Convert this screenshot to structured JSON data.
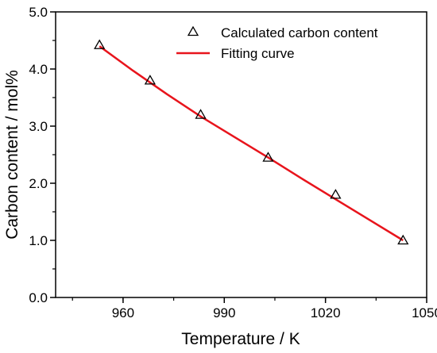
{
  "chart_data": {
    "type": "scatter",
    "xlabel": "Temperature / K",
    "ylabel": "Carbon content / mol%",
    "xlim": [
      940,
      1050
    ],
    "ylim": [
      0.0,
      5.0
    ],
    "x_ticks": [
      960,
      990,
      1020,
      1050
    ],
    "x_tick_labels": [
      "960",
      "990",
      "1020",
      "1050"
    ],
    "y_ticks": [
      0.0,
      1.0,
      2.0,
      3.0,
      4.0,
      5.0
    ],
    "y_tick_labels": [
      "0.0",
      "1.0",
      "2.0",
      "3.0",
      "4.0",
      "5.0"
    ],
    "grid": false,
    "legend_position": "top-right",
    "series": [
      {
        "name": "Calculated carbon content",
        "kind": "scatter",
        "marker": "open-triangle",
        "color": "#000000",
        "x": [
          953,
          968,
          983,
          1003,
          1023,
          1043
        ],
        "y": [
          4.42,
          3.8,
          3.2,
          2.45,
          1.8,
          1.0
        ]
      },
      {
        "name": "Fitting curve",
        "kind": "line",
        "color": "#e8141c",
        "x": [
          953,
          963,
          973,
          983,
          993,
          1003,
          1013,
          1023,
          1033,
          1043
        ],
        "y": [
          4.4,
          3.97,
          3.56,
          3.17,
          2.81,
          2.45,
          2.08,
          1.72,
          1.36,
          1.0
        ]
      }
    ]
  }
}
